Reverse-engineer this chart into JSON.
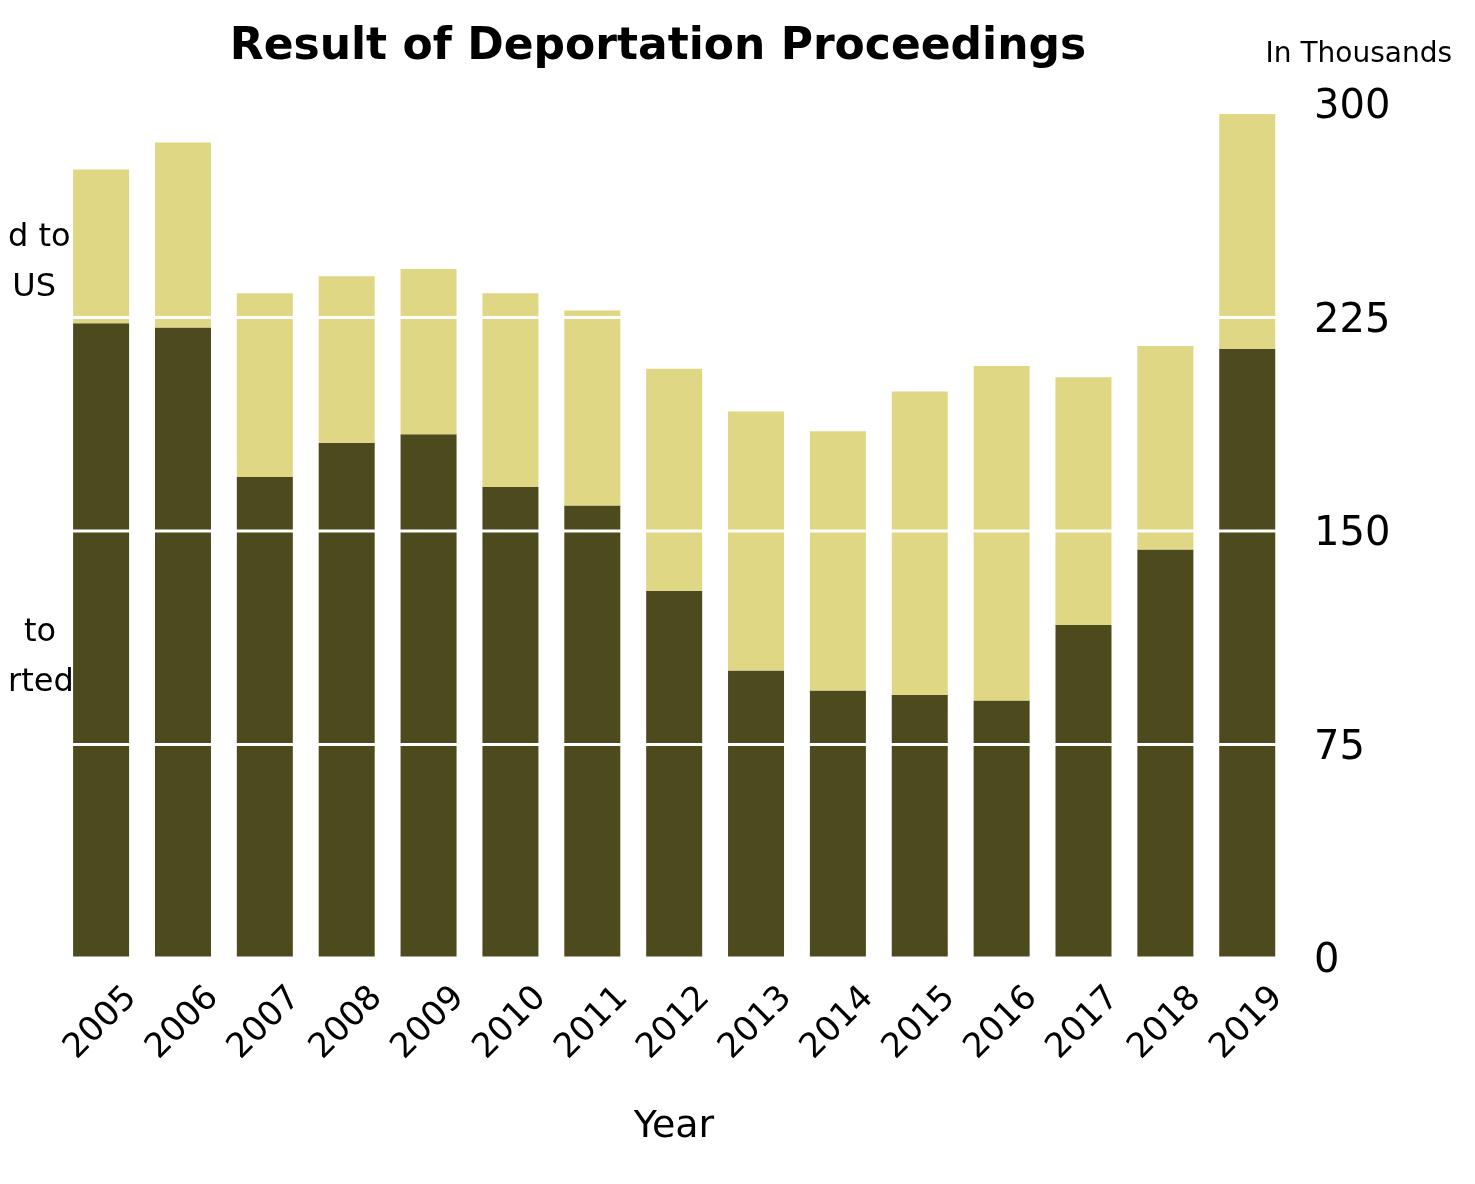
{
  "chart_data": {
    "type": "bar",
    "title": "Result of Deportation Proceedings",
    "xlabel": "Year",
    "ylabel": "In Thousands",
    "categories": [
      "2005",
      "2006",
      "2007",
      "2008",
      "2009",
      "2010",
      "2011",
      "2012",
      "2013",
      "2014",
      "2015",
      "2016",
      "2017",
      "2018",
      "2019"
    ],
    "series": [
      {
        "name": "to rted",
        "color": "#4d4a1e",
        "values": [
          223,
          221.5,
          169,
          181,
          184,
          165.5,
          159,
          129,
          101,
          94,
          92.5,
          90.5,
          117,
          143.5,
          214
        ]
      },
      {
        "name": "d to US",
        "color": "#e0d784",
        "values": [
          54,
          65,
          64.5,
          58.5,
          58,
          68,
          68.5,
          78,
          91,
          91,
          106.5,
          117.5,
          87,
          71.5,
          82.5
        ]
      }
    ],
    "stacked": true,
    "ylim": [
      0,
      300
    ],
    "yticks": [
      0,
      75,
      150,
      225,
      300
    ],
    "grid": "y"
  }
}
